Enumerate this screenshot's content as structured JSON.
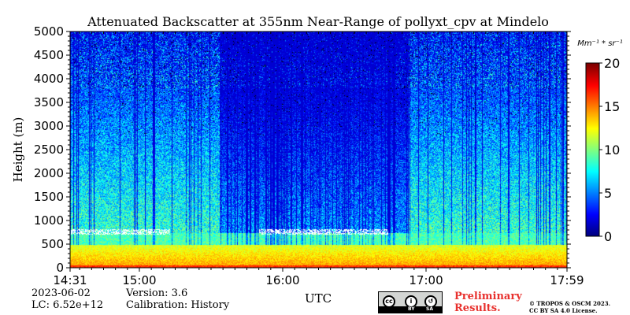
{
  "chart_data": {
    "type": "heatmap",
    "title": "Attenuated Backscatter at 355nm Near-Range of pollyxt_cpv at Mindelo",
    "xlabel": "UTC",
    "ylabel": "Height (m)",
    "x_tick_labels": [
      "14:31",
      "15:00",
      "16:00",
      "17:00",
      "17:59"
    ],
    "x_tick_minutes": [
      871,
      900,
      960,
      1020,
      1079
    ],
    "xlim_minutes": [
      871,
      1079
    ],
    "y_ticks": [
      0,
      500,
      1000,
      1500,
      2000,
      2500,
      3000,
      3500,
      4000,
      4500,
      5000
    ],
    "ylim": [
      0,
      5000
    ],
    "colorbar": {
      "label": "Mm⁻¹ * sr⁻¹",
      "ticks": [
        0,
        5,
        10,
        15,
        20
      ],
      "range": [
        0,
        20
      ],
      "colormap": "jet"
    },
    "features": {
      "surface_layer_top_m": 500,
      "cloud_base_m": 750,
      "cloud_top_m": 820
    },
    "grid": false
  },
  "info": {
    "date": "2023-06-02",
    "lc": "LC: 6.52e+12",
    "version": "Version: 3.6",
    "calibration": "Calibration: History"
  },
  "license": {
    "notice": "Preliminary",
    "notice2": "Results.",
    "copyright_line1": "© TROPOS & OSCM 2023.",
    "copyright_line2": "CC BY SA 4.0 License.",
    "cc_text": "cc",
    "by_text": "BY",
    "sa_text": "SA"
  }
}
